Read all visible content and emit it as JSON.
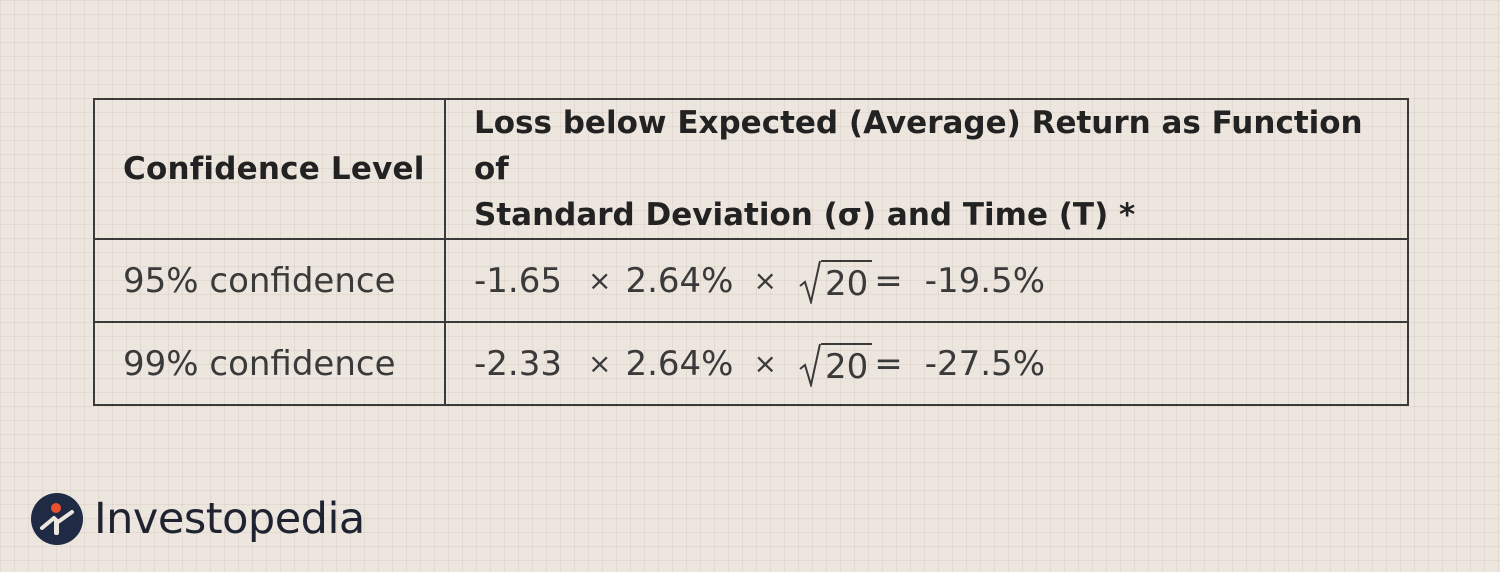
{
  "table": {
    "headers": {
      "col1": "Confidence Level",
      "col2_line1": "Loss below Expected (Average) Return as Function of",
      "col2_line2": "Standard Deviation (σ) and Time (T) *"
    },
    "rows": [
      {
        "label": "95% confidence",
        "z": "-1.65",
        "times1": "×",
        "sigma": "2.64%",
        "times2": "×",
        "t": "20",
        "equals": "=",
        "result": "-19.5%"
      },
      {
        "label": "99% confidence",
        "z": "-2.33",
        "times1": "×",
        "sigma": "2.64%",
        "times2": "×",
        "t": "20",
        "equals": "=",
        "result": "-27.5%"
      }
    ]
  },
  "brand": {
    "name": "Investopedia",
    "logo_icon": "investopedia-logo-icon",
    "colors": {
      "navy": "#1f2a44",
      "orange": "#e8502f"
    }
  },
  "colors": {
    "background": "#ede6df",
    "border": "#3a3a3a",
    "text": "#2b2b2b"
  }
}
